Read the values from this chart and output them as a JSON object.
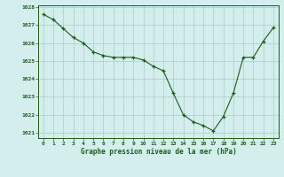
{
  "x": [
    0,
    1,
    2,
    3,
    4,
    5,
    6,
    7,
    8,
    9,
    10,
    11,
    12,
    13,
    14,
    15,
    16,
    17,
    18,
    19,
    20,
    21,
    22,
    23
  ],
  "y": [
    1027.6,
    1027.3,
    1026.8,
    1026.3,
    1026.0,
    1025.5,
    1025.3,
    1025.2,
    1025.2,
    1025.2,
    1025.05,
    1024.7,
    1024.45,
    1023.2,
    1022.0,
    1021.6,
    1021.4,
    1021.1,
    1021.9,
    1023.2,
    1025.2,
    1025.2,
    1026.1,
    1026.85
  ],
  "ylim": [
    1020.7,
    1028.1
  ],
  "xlim": [
    -0.5,
    23.5
  ],
  "line_color": "#1a5c1a",
  "marker_color": "#1a5c1a",
  "bg_color": "#d4eeee",
  "grid_color": "#aacccc",
  "xlabel": "Graphe pression niveau de la mer (hPa)",
  "xlabel_color": "#1a5c1a",
  "xticks": [
    0,
    1,
    2,
    3,
    4,
    5,
    6,
    7,
    8,
    9,
    10,
    11,
    12,
    13,
    14,
    15,
    16,
    17,
    18,
    19,
    20,
    21,
    22,
    23
  ],
  "yticks": [
    1021,
    1022,
    1023,
    1024,
    1025,
    1026,
    1027,
    1028
  ]
}
